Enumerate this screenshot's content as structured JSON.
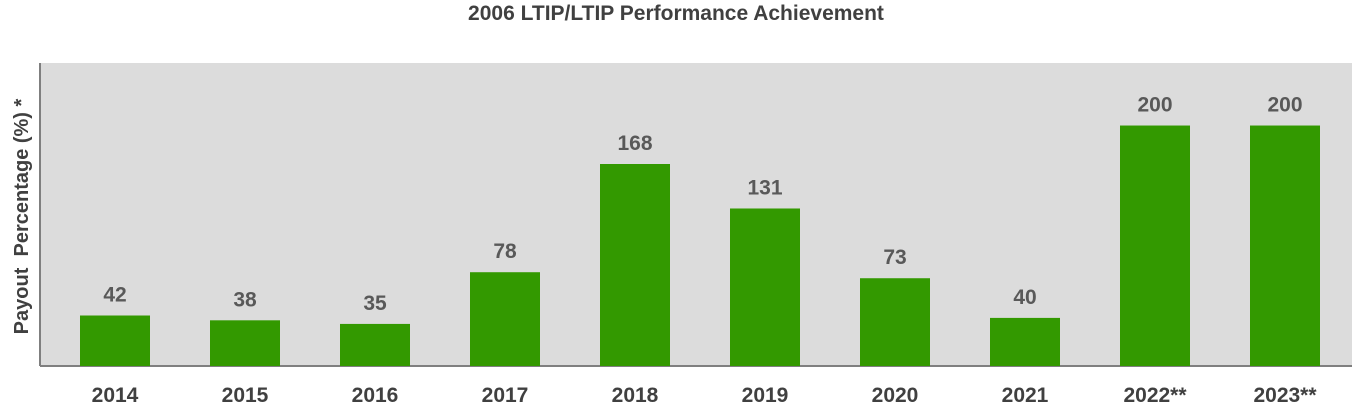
{
  "chart_data": {
    "type": "bar",
    "title": "2006 LTIP/LTIP Performance Achievement",
    "xlabel": "",
    "ylabel": "Payout  Percentage (%) *",
    "categories": [
      "2014",
      "2015",
      "2016",
      "2017",
      "2018",
      "2019",
      "2020",
      "2021",
      "2022**",
      "2023**"
    ],
    "values": [
      42,
      38,
      35,
      78,
      168,
      131,
      73,
      40,
      200,
      200
    ],
    "ylim": [
      0,
      252
    ],
    "grid": false,
    "legend": "none",
    "colors": {
      "bar": "#339900",
      "plot_background": "#dcdcdc",
      "axis": "#7f7f7f"
    }
  }
}
